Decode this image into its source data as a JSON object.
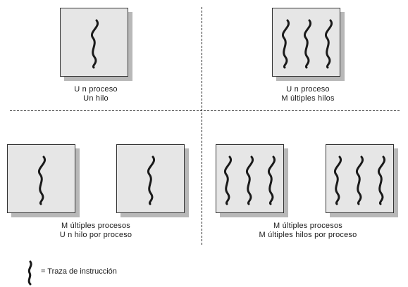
{
  "quadrants": {
    "top_left": {
      "line1": "U n proceso",
      "line2": "Un hilo"
    },
    "top_right": {
      "line1": "U n proceso",
      "line2": "M últiples hilos"
    },
    "bottom_left": {
      "line1": "M últiples procesos",
      "line2": "U n hilo por proceso"
    },
    "bottom_right": {
      "line1": "M últiples procesos",
      "line2": "M últiples hilos por proceso"
    }
  },
  "legend": {
    "icon": "wavy-thread-icon",
    "label": "= Traza de instrucción"
  },
  "colors": {
    "box_fill": "#e6e6e6",
    "box_shadow": "#b8b8b8",
    "thread_stroke": "#1a1a1a"
  }
}
